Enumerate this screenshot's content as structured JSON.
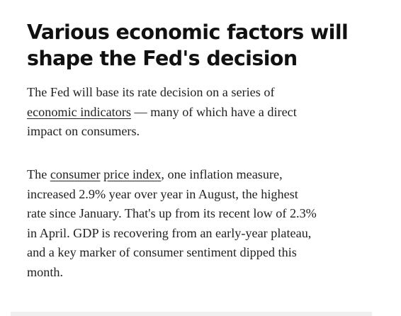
{
  "heading": [
    "Various economic factors will",
    "shape the Fed's decision"
  ],
  "paragraphs": [
    [
      [
        {
          "text": "The Fed will base its rate decision on a series of"
        }
      ],
      [
        {
          "text": "economic indicators",
          "link": true
        },
        {
          "text": " — many of which have a direct"
        }
      ],
      [
        {
          "text": "impact on consumers."
        }
      ]
    ],
    [
      [
        {
          "text": "The "
        },
        {
          "text": "consumer",
          "link": true
        },
        {
          "text": " "
        },
        {
          "text": "price index",
          "link": true
        },
        {
          "text": ", one inflation measure,"
        }
      ],
      [
        {
          "text": "increased 2.9% year over year in August, the highest"
        }
      ],
      [
        {
          "text": "rate since January. That's up from its recent low of 2.3%"
        }
      ],
      [
        {
          "text": "in April. GDP is recovering from an early-year plateau,"
        }
      ],
      [
        {
          "text": "and a key marker of consumer sentiment dipped this"
        }
      ],
      [
        {
          "text": "month."
        }
      ]
    ]
  ]
}
